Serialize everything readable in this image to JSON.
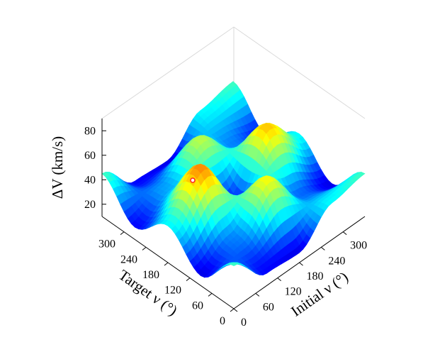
{
  "chart_data": {
    "type": "surface",
    "zlabel": "ΔV (km/s)",
    "xlabel": "Initial ν (°)",
    "ylabel": "Target ν (°)",
    "x_ticks": [
      "0",
      "60",
      "120",
      "180",
      "240",
      "300"
    ],
    "y_ticks": [
      "0",
      "60",
      "120",
      "180",
      "240",
      "300"
    ],
    "z_ticks": [
      "20",
      "40",
      "60",
      "80"
    ],
    "xlim": [
      0,
      360
    ],
    "ylim": [
      0,
      360
    ],
    "zlim": [
      10,
      90
    ],
    "colormap": "jet",
    "surface_samples": {
      "description_of_axes": "rows: initial ν (0,90,180,270,360); cols: target ν (0,90,180,270,360)",
      "initial": [
        0,
        90,
        180,
        270,
        360
      ],
      "target": [
        0,
        90,
        180,
        270,
        360
      ],
      "dv": [
        [
          45,
          18,
          40,
          20,
          45
        ],
        [
          20,
          30,
          70,
          33,
          20
        ],
        [
          18,
          60,
          22,
          55,
          18
        ],
        [
          40,
          28,
          65,
          30,
          40
        ],
        [
          45,
          18,
          40,
          20,
          45
        ]
      ]
    },
    "marker": {
      "initial": 120,
      "target": 300,
      "dv": 40
    }
  }
}
